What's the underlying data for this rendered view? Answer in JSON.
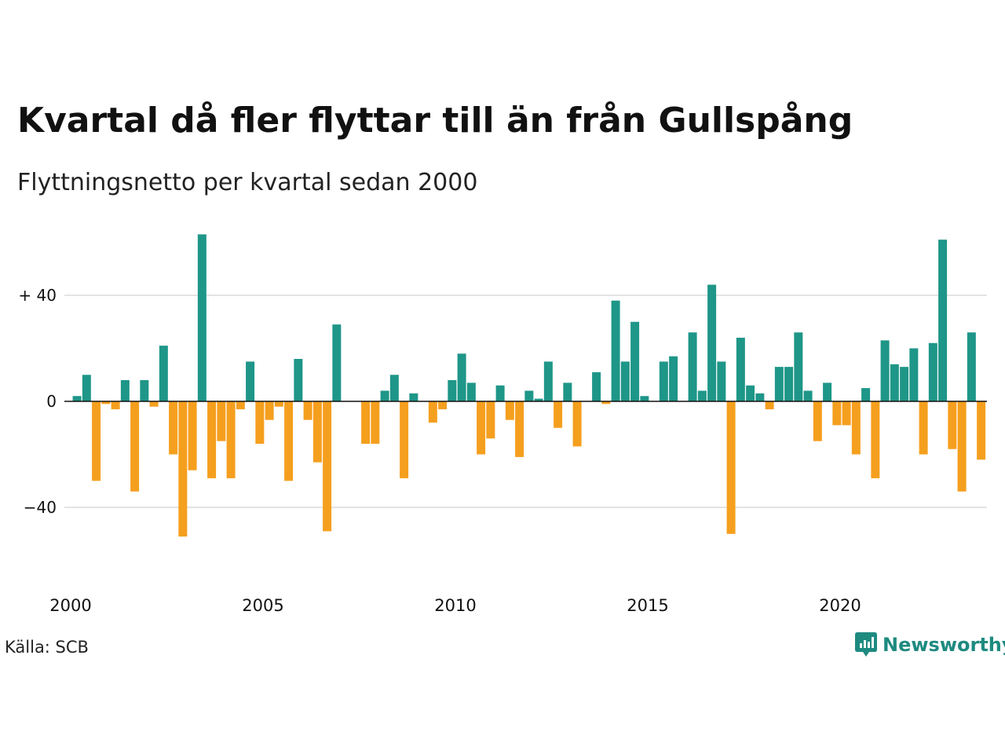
{
  "title": "Kvartal då fler flyttar till än från Gullspång",
  "subtitle": "Flyttningsnetto per kvartal sedan 2000",
  "source": "Källa: SCB",
  "brand": "Newsworthy",
  "colors": {
    "positive": "#1e9688",
    "negative": "#f59f1e",
    "grid": "#e3e3e3",
    "brand": "#1e8a80"
  },
  "chart_data": {
    "type": "bar",
    "x_start": {
      "year": 2000,
      "quarter": 1
    },
    "x_ticks": [
      "2000",
      "2005",
      "2010",
      "2015",
      "2020"
    ],
    "y_ticks": [
      {
        "value": 40,
        "label": "+ 40"
      },
      {
        "value": 0,
        "label": "0"
      },
      {
        "value": -40,
        "label": "−40"
      }
    ],
    "ylim": [
      -60,
      65
    ],
    "grid": true,
    "values": [
      2,
      10,
      -30,
      -1,
      -3,
      8,
      -34,
      8,
      -2,
      21,
      -20,
      -51,
      -26,
      63,
      -29,
      -15,
      -29,
      -3,
      15,
      -16,
      -7,
      -2,
      -30,
      16,
      -7,
      -23,
      -49,
      29,
      0,
      0,
      -16,
      -16,
      4,
      10,
      -29,
      3,
      0,
      -8,
      -3,
      8,
      18,
      7,
      -20,
      -14,
      6,
      -7,
      -21,
      4,
      1,
      15,
      -10,
      7,
      -17,
      0,
      11,
      -1,
      38,
      15,
      30,
      2,
      0,
      15,
      17,
      0,
      26,
      4,
      44,
      15,
      -50,
      24,
      6,
      3,
      -3,
      13,
      13,
      26,
      4,
      -15,
      7,
      -9,
      -9,
      -20,
      5,
      -29,
      23,
      14,
      13,
      20,
      -20,
      22,
      61,
      -18,
      -34,
      26,
      -22
    ]
  }
}
